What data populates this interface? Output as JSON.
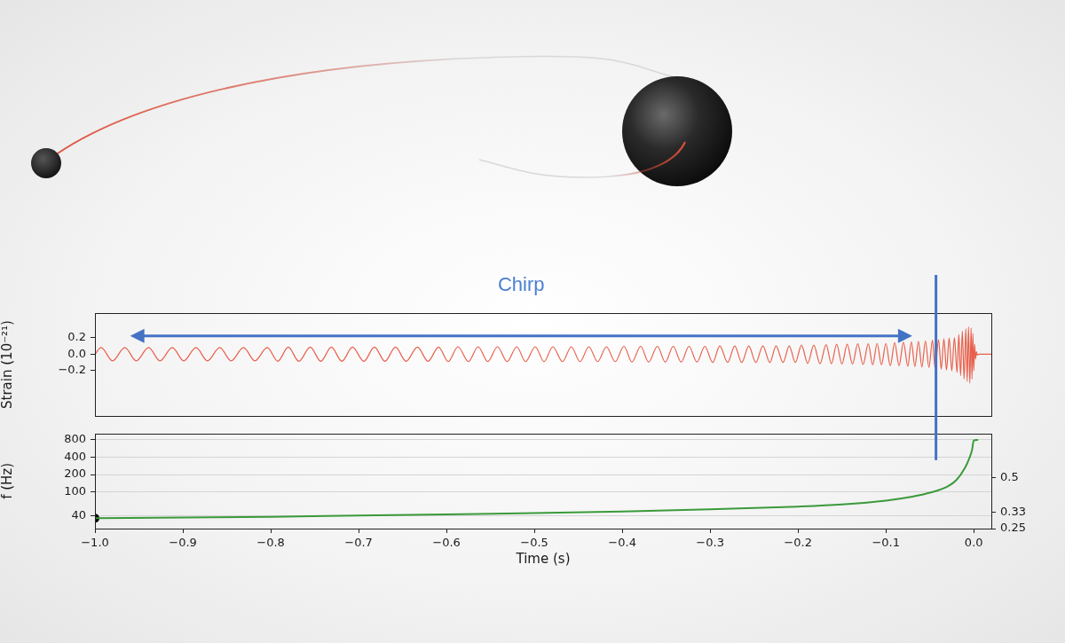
{
  "chart_data": [
    {
      "type": "line",
      "ylabel": "Strain (10⁻²¹)",
      "xlim": [
        -1.0,
        0.02
      ],
      "ylim": [
        -0.75,
        0.5
      ],
      "yticks": [
        0.2,
        {
          "value": 0,
          "label": "0.0"
        },
        {
          "value": -0.2,
          "label": "−0.2"
        }
      ],
      "grid": false,
      "tick_labels": "y",
      "annotation": {
        "text": "Chirp",
        "x_from": -0.96,
        "x_to": -0.07,
        "line_x": -0.043
      },
      "series": [
        {
          "color": "#e8604c",
          "marker": "none",
          "line_style": "solid",
          "x": [
            -1.0,
            -0.993,
            -0.98,
            -0.966,
            -0.953,
            -0.939,
            -0.926,
            -0.912,
            -0.899,
            -0.885,
            -0.872,
            -0.858,
            -0.845,
            -0.831,
            -0.818,
            -0.804,
            -0.792,
            -0.78,
            -0.768,
            -0.755,
            -0.743,
            -0.731,
            -0.719,
            -0.707,
            -0.694,
            -0.682,
            -0.67,
            -0.658,
            -0.646,
            -0.633,
            -0.621,
            -0.609,
            -0.598,
            -0.587,
            -0.575,
            -0.564,
            -0.553,
            -0.542,
            -0.531,
            -0.52,
            -0.51,
            -0.499,
            -0.489,
            -0.479,
            -0.468,
            -0.458,
            -0.448,
            -0.438,
            -0.428,
            -0.418,
            -0.408,
            -0.398,
            -0.389,
            -0.379,
            -0.37,
            -0.36,
            -0.351,
            -0.342,
            -0.333,
            -0.324,
            -0.315,
            -0.306,
            -0.297,
            -0.289,
            -0.28,
            -0.272,
            -0.264,
            -0.256,
            -0.248,
            -0.24,
            -0.232,
            -0.225,
            -0.217,
            -0.21,
            -0.203,
            -0.196,
            -0.189,
            -0.182,
            -0.175,
            -0.168,
            -0.162,
            -0.156,
            -0.15,
            -0.144,
            -0.138,
            -0.132,
            -0.126,
            -0.12,
            -0.115,
            -0.11,
            -0.105,
            -0.1,
            -0.095,
            -0.09,
            -0.085,
            -0.08,
            -0.075,
            -0.071,
            -0.067,
            -0.063,
            -0.059,
            -0.055,
            -0.051,
            -0.047,
            -0.044,
            -0.04,
            -0.037,
            -0.034,
            -0.031,
            -0.028,
            -0.025,
            -0.022,
            -0.019,
            -0.017,
            -0.015,
            -0.013,
            -0.011,
            -0.009,
            -0.0075,
            -0.006,
            -0.0045,
            -0.003,
            -0.002,
            -0.001,
            0.0,
            0.001,
            0.002,
            0.003,
            0.004,
            0.006,
            0.02
          ],
          "values": [
            0.0,
            0.08,
            -0.08,
            0.08,
            -0.08,
            0.08,
            -0.08,
            0.08,
            -0.08,
            0.08,
            -0.08,
            0.08,
            -0.08,
            0.08,
            -0.08,
            0.08,
            -0.085,
            0.085,
            -0.085,
            0.085,
            -0.085,
            0.085,
            -0.085,
            0.085,
            -0.085,
            0.085,
            -0.085,
            0.085,
            -0.085,
            0.085,
            -0.085,
            0.085,
            -0.09,
            0.09,
            -0.09,
            0.09,
            -0.09,
            0.09,
            -0.09,
            0.09,
            -0.09,
            0.09,
            -0.09,
            0.09,
            -0.09,
            0.09,
            -0.09,
            0.09,
            -0.09,
            0.09,
            -0.09,
            0.095,
            -0.095,
            0.095,
            -0.095,
            0.095,
            -0.095,
            0.095,
            -0.095,
            0.095,
            -0.095,
            0.095,
            -0.1,
            0.1,
            -0.1,
            0.1,
            -0.1,
            0.1,
            -0.1,
            0.1,
            -0.1,
            0.1,
            -0.1,
            0.1,
            -0.1,
            0.11,
            -0.11,
            0.11,
            -0.115,
            0.115,
            -0.115,
            0.12,
            -0.12,
            0.12,
            -0.12,
            0.125,
            -0.125,
            0.125,
            -0.13,
            0.13,
            -0.13,
            0.13,
            -0.14,
            0.14,
            -0.14,
            0.145,
            -0.145,
            0.15,
            -0.15,
            0.155,
            -0.155,
            0.16,
            -0.16,
            0.17,
            -0.17,
            0.175,
            -0.18,
            0.185,
            -0.19,
            0.195,
            -0.2,
            0.2,
            -0.22,
            0.24,
            -0.26,
            0.28,
            -0.3,
            0.31,
            -0.33,
            0.33,
            -0.35,
            0.32,
            -0.3,
            0.25,
            -0.2,
            0.12,
            -0.06,
            0.03,
            -0.01,
            0.0,
            0.0
          ]
        }
      ]
    },
    {
      "type": "line",
      "xlabel": "Time (s)",
      "ylabel": "f (Hz)",
      "log": "y",
      "xlim": [
        -1.0,
        0.02
      ],
      "xticks": [
        {
          "value": -1.0,
          "label": "−1.0"
        },
        {
          "value": -0.9,
          "label": "−0.9"
        },
        {
          "value": -0.8,
          "label": "−0.8"
        },
        {
          "value": -0.7,
          "label": "−0.7"
        },
        {
          "value": -0.6,
          "label": "−0.6"
        },
        {
          "value": -0.5,
          "label": "−0.5"
        },
        {
          "value": -0.4,
          "label": "−0.4"
        },
        {
          "value": -0.3,
          "label": "−0.3"
        },
        {
          "value": -0.2,
          "label": "−0.2"
        },
        {
          "value": -0.1,
          "label": "−0.1"
        },
        {
          "value": 0,
          "label": "0.0"
        }
      ],
      "ylim": [
        24,
        1000
      ],
      "yticks": [
        40,
        100,
        200,
        400,
        800
      ],
      "y2lim": [
        0.25,
        0.72
      ],
      "y2ticks": [
        0.25,
        0.33,
        0.5
      ],
      "grid": true,
      "series": [
        {
          "color": "#3a9a3a",
          "marker": "none",
          "line_style": "solid",
          "x": [
            -1.0,
            -0.9,
            -0.8,
            -0.7,
            -0.6,
            -0.5,
            -0.4,
            -0.3,
            -0.2,
            -0.15,
            -0.1,
            -0.07,
            -0.05,
            -0.03,
            -0.02,
            -0.01,
            -0.005,
            -0.002,
            0.0,
            0.005
          ],
          "values": [
            36,
            37,
            38,
            40,
            42,
            44,
            47,
            51,
            57,
            62,
            72,
            84,
            98,
            125,
            160,
            260,
            380,
            520,
            760,
            780
          ]
        },
        {
          "type": "scatter",
          "color": "#000000",
          "marker": "circle",
          "x": [
            -1.0
          ],
          "values": [
            36
          ]
        }
      ]
    }
  ]
}
